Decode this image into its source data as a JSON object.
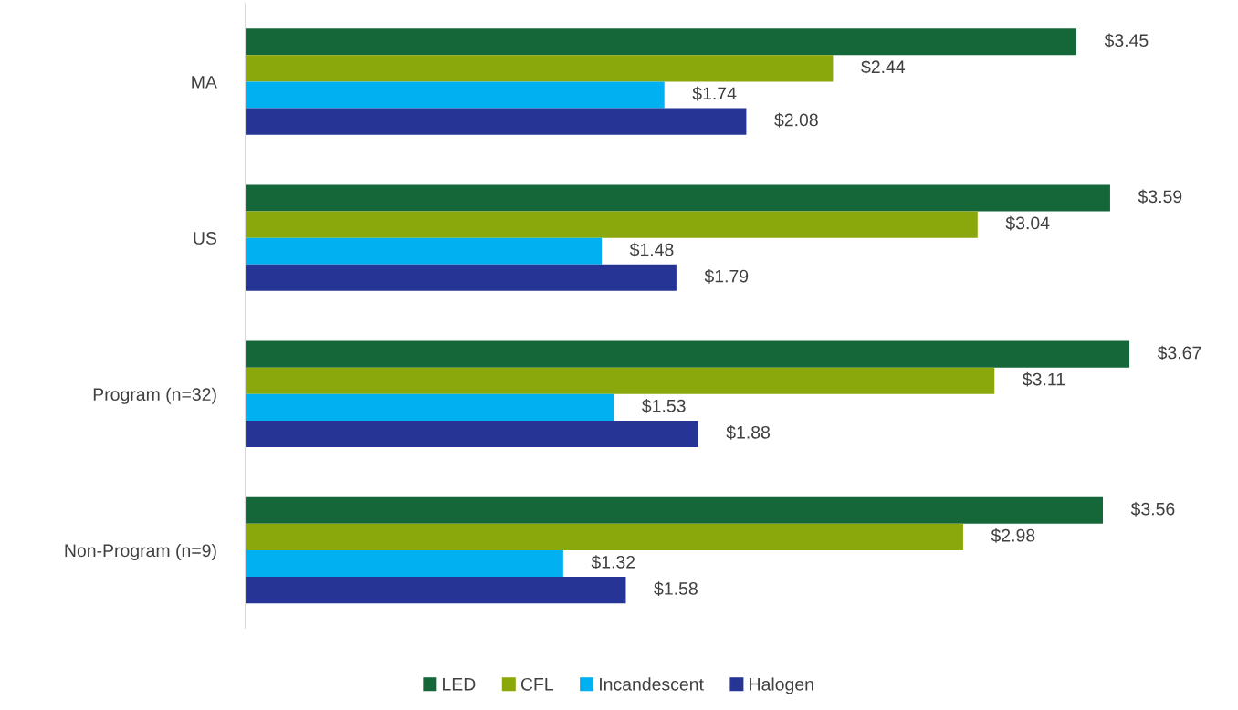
{
  "chart_data": {
    "type": "bar",
    "orientation": "horizontal",
    "categories": [
      "MA",
      "US",
      "Program (n=32)",
      "Non-Program (n=9)"
    ],
    "series": [
      {
        "name": "LED",
        "color": "#15673a",
        "values": [
          3.45,
          3.59,
          3.67,
          3.56
        ],
        "value_labels": [
          "$3.45",
          "$3.59",
          "$3.67",
          "$3.56"
        ]
      },
      {
        "name": "CFL",
        "color": "#8aa80b",
        "values": [
          2.44,
          3.04,
          3.11,
          2.98
        ],
        "value_labels": [
          "$2.44",
          "$3.04",
          "$3.11",
          "$2.98"
        ]
      },
      {
        "name": "Incandescent",
        "color": "#00b0f0",
        "values": [
          1.74,
          1.48,
          1.53,
          1.32
        ],
        "value_labels": [
          "$1.74",
          "$1.48",
          "$1.53",
          "$1.32"
        ]
      },
      {
        "name": "Halogen",
        "color": "#263496",
        "values": [
          2.08,
          1.79,
          1.88,
          1.58
        ],
        "value_labels": [
          "$2.08",
          "$1.79",
          "$1.88",
          "$1.58"
        ]
      }
    ],
    "tick_labels": "y",
    "grid": false,
    "legend": "bottom"
  }
}
